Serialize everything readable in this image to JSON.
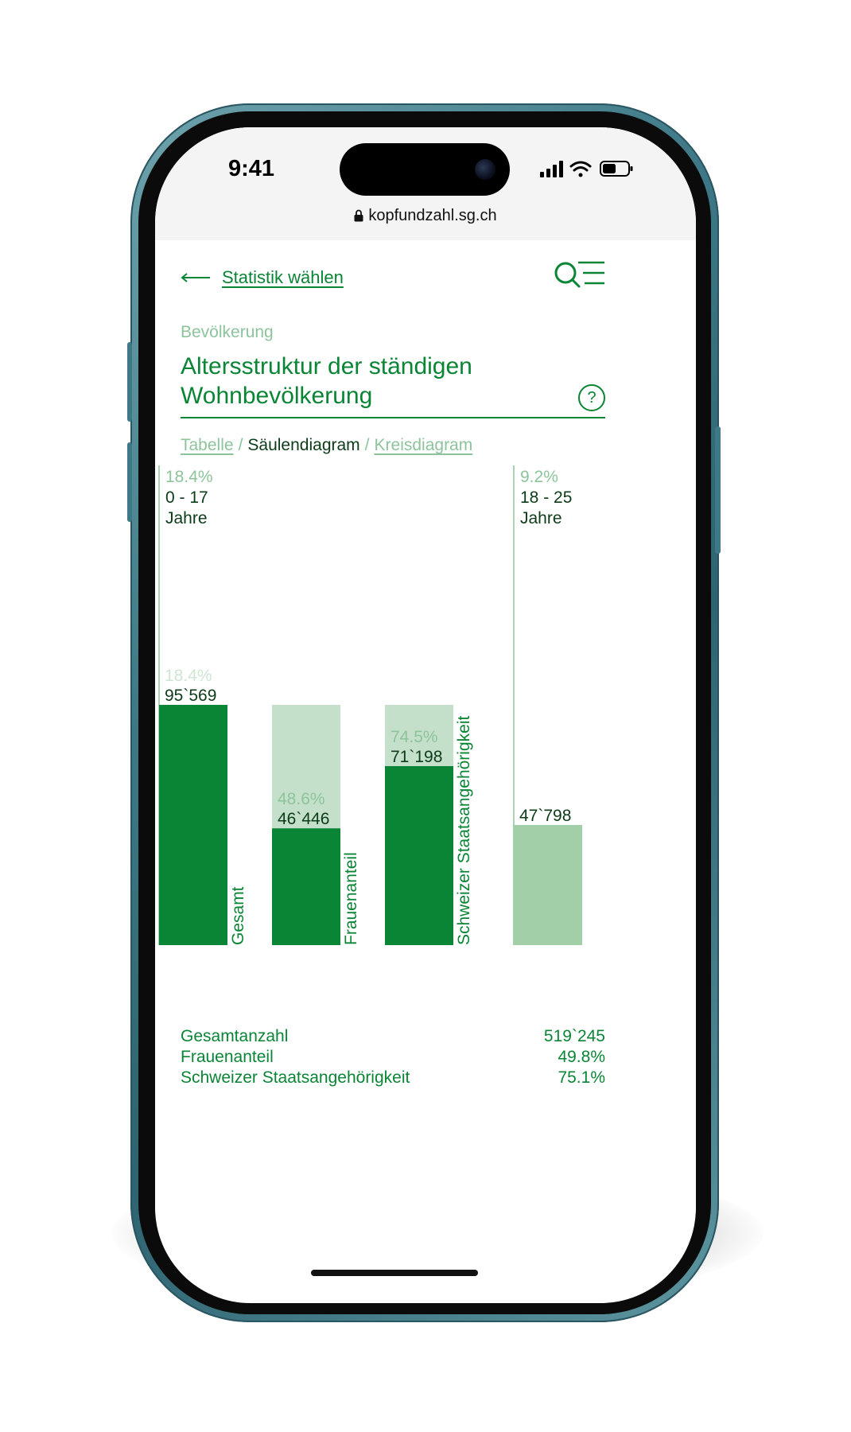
{
  "status_bar": {
    "time": "9:41"
  },
  "browser": {
    "url": "kopfundzahl.sg.ch"
  },
  "nav": {
    "back_label": "Statistik wählen"
  },
  "page": {
    "category": "Bevölkerung",
    "title_line1": "Altersstruktur der ständigen",
    "title_line2": "Wohnbevölkerung",
    "help_label": "?"
  },
  "view_switch": {
    "table": "Tabelle",
    "sep": "/",
    "bar": "Säulendiagram",
    "pie": "Kreisdiagram"
  },
  "chart_data": {
    "type": "bar",
    "groups": [
      {
        "age_share": "18.4%",
        "age_range": "0 - 17",
        "age_unit": "Jahre",
        "bars": [
          {
            "name": "Gesamt",
            "value": 95569,
            "value_label": "95`569",
            "percent": 18.4,
            "percent_label": "18.4%"
          },
          {
            "name": "Frauenanteil",
            "value": 46446,
            "value_label": "46`446",
            "percent": 48.6,
            "percent_label": "48.6%"
          },
          {
            "name": "Schweizer Staatsangehörigkeit",
            "value": 71198,
            "value_label": "71`198",
            "percent": 74.5,
            "percent_label": "74.5%"
          }
        ]
      },
      {
        "age_share": "9.2%",
        "age_range": "18 - 25",
        "age_unit": "Jahre",
        "bars": [
          {
            "value": 47798,
            "value_label": "47`798",
            "percent": 9.2
          }
        ]
      }
    ],
    "colors": {
      "dark": "#0a8535",
      "light": "#c5e0ca",
      "medium": "#a2cfa8",
      "pale_text": "#cfe6d4"
    }
  },
  "totals": [
    {
      "label": "Gesamtanzahl",
      "value": "519`245"
    },
    {
      "label": "Frauenanteil",
      "value": "49.8%"
    },
    {
      "label": "Schweizer Staatsangehörigkeit",
      "value": "75.1%"
    }
  ]
}
